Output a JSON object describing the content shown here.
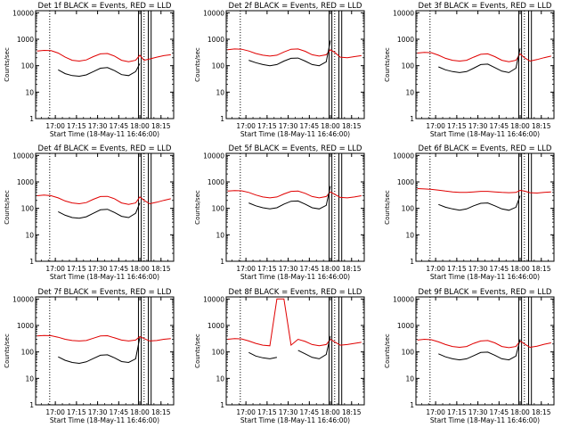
{
  "colors": {
    "events": "#000000",
    "lld": "#e00000",
    "background": "#ffffff",
    "axis": "#000000"
  },
  "shared": {
    "xlabel": "Start Time (18-May-11 16:46:00)",
    "ylabel": "Counts/sec",
    "x_ticks": [
      "17:00",
      "17:15",
      "17:30",
      "17:45",
      "18:00",
      "18:15"
    ],
    "y_ticks": [
      "1",
      "10",
      "100",
      "1000",
      "10000"
    ]
  },
  "chart_data": [
    {
      "type": "line",
      "title": "Det 1f BLACK = Events, RED = LLD",
      "x": [
        "16:47",
        "16:52",
        "16:57",
        "17:02",
        "17:07",
        "17:12",
        "17:17",
        "17:22",
        "17:27",
        "17:32",
        "17:37",
        "17:42",
        "17:47",
        "17:52",
        "17:57",
        "18:00",
        "18:03",
        "18:07",
        "18:12",
        "18:17",
        "18:22"
      ],
      "xlim": [
        "16:46",
        "18:24"
      ],
      "ylim": [
        1,
        12000
      ],
      "yscale": "log",
      "series": [
        {
          "name": "LLD",
          "values": [
            360,
            380,
            370,
            300,
            210,
            160,
            150,
            165,
            220,
            280,
            290,
            230,
            160,
            140,
            160,
            250,
            160,
            180,
            210,
            240,
            260
          ]
        },
        {
          "name": "Events",
          "values": [
            null,
            null,
            null,
            70,
            50,
            42,
            40,
            45,
            60,
            80,
            85,
            65,
            46,
            42,
            60,
            120,
            null,
            null,
            null,
            null,
            null
          ]
        }
      ],
      "vlines_dotted": [
        "16:56",
        "18:03"
      ],
      "vlines_solid": [
        "17:59",
        "18:01",
        "18:06",
        "18:08"
      ]
    },
    {
      "type": "line",
      "title": "Det 2f BLACK = Events, RED = LLD",
      "x": [
        "16:47",
        "16:52",
        "16:57",
        "17:02",
        "17:07",
        "17:12",
        "17:17",
        "17:22",
        "17:27",
        "17:32",
        "17:37",
        "17:42",
        "17:47",
        "17:52",
        "17:57",
        "18:00",
        "18:03",
        "18:07",
        "18:12",
        "18:17",
        "18:22"
      ],
      "xlim": [
        "16:46",
        "18:24"
      ],
      "ylim": [
        1,
        12000
      ],
      "yscale": "log",
      "series": [
        {
          "name": "LLD",
          "values": [
            400,
            430,
            420,
            360,
            290,
            250,
            230,
            250,
            330,
            420,
            430,
            350,
            260,
            230,
            260,
            400,
            320,
            210,
            200,
            220,
            240
          ]
        },
        {
          "name": "Events",
          "values": [
            null,
            null,
            null,
            160,
            130,
            110,
            100,
            110,
            150,
            190,
            195,
            150,
            110,
            100,
            140,
            900,
            null,
            null,
            null,
            null,
            null
          ]
        }
      ],
      "vlines_dotted": [
        "16:56",
        "18:03"
      ],
      "vlines_solid": [
        "17:59",
        "18:01",
        "18:06",
        "18:08"
      ]
    },
    {
      "type": "line",
      "title": "Det 3f BLACK = Events, RED = LLD",
      "x": [
        "16:47",
        "16:52",
        "16:57",
        "17:02",
        "17:07",
        "17:12",
        "17:17",
        "17:22",
        "17:27",
        "17:32",
        "17:37",
        "17:42",
        "17:47",
        "17:52",
        "17:57",
        "18:00",
        "18:03",
        "18:07",
        "18:12",
        "18:17",
        "18:22"
      ],
      "xlim": [
        "16:46",
        "18:24"
      ],
      "ylim": [
        1,
        12000
      ],
      "yscale": "log",
      "series": [
        {
          "name": "LLD",
          "values": [
            300,
            320,
            310,
            250,
            190,
            160,
            150,
            160,
            210,
            270,
            280,
            220,
            160,
            140,
            160,
            280,
            200,
            150,
            170,
            200,
            230
          ]
        },
        {
          "name": "Events",
          "values": [
            null,
            null,
            null,
            90,
            70,
            60,
            55,
            60,
            80,
            110,
            115,
            85,
            62,
            55,
            80,
            450,
            null,
            null,
            null,
            null,
            null
          ]
        }
      ],
      "vlines_dotted": [
        "16:56",
        "18:03"
      ],
      "vlines_solid": [
        "17:59",
        "18:01",
        "18:06",
        "18:08"
      ]
    },
    {
      "type": "line",
      "title": "Det 4f BLACK = Events, RED = LLD",
      "x": [
        "16:47",
        "16:52",
        "16:57",
        "17:02",
        "17:07",
        "17:12",
        "17:17",
        "17:22",
        "17:27",
        "17:32",
        "17:37",
        "17:42",
        "17:47",
        "17:52",
        "17:57",
        "18:00",
        "18:03",
        "18:07",
        "18:12",
        "18:17",
        "18:22"
      ],
      "xlim": [
        "16:46",
        "18:24"
      ],
      "ylim": [
        1,
        12000
      ],
      "yscale": "log",
      "series": [
        {
          "name": "LLD",
          "values": [
            300,
            320,
            300,
            250,
            190,
            160,
            150,
            165,
            220,
            280,
            285,
            230,
            160,
            140,
            160,
            270,
            200,
            150,
            170,
            200,
            230
          ]
        },
        {
          "name": "Events",
          "values": [
            null,
            null,
            null,
            75,
            55,
            45,
            42,
            48,
            65,
            88,
            92,
            70,
            50,
            45,
            65,
            160,
            null,
            null,
            null,
            null,
            null
          ]
        }
      ],
      "vlines_dotted": [
        "16:56",
        "18:03"
      ],
      "vlines_solid": [
        "17:59",
        "18:01",
        "18:06",
        "18:08"
      ]
    },
    {
      "type": "line",
      "title": "Det 5f BLACK = Events, RED = LLD",
      "x": [
        "16:47",
        "16:52",
        "16:57",
        "17:02",
        "17:07",
        "17:12",
        "17:17",
        "17:22",
        "17:27",
        "17:32",
        "17:37",
        "17:42",
        "17:47",
        "17:52",
        "17:57",
        "18:00",
        "18:03",
        "18:07",
        "18:12",
        "18:17",
        "18:22"
      ],
      "xlim": [
        "16:46",
        "18:24"
      ],
      "ylim": [
        1,
        12000
      ],
      "yscale": "log",
      "series": [
        {
          "name": "LLD",
          "values": [
            450,
            470,
            460,
            400,
            320,
            270,
            250,
            270,
            350,
            440,
            450,
            370,
            280,
            250,
            280,
            420,
            340,
            260,
            250,
            270,
            300
          ]
        },
        {
          "name": "Events",
          "values": [
            null,
            null,
            null,
            160,
            125,
            105,
            95,
            105,
            145,
            185,
            190,
            145,
            105,
            95,
            130,
            700,
            null,
            null,
            null,
            null,
            null
          ]
        }
      ],
      "vlines_dotted": [
        "16:56",
        "18:03"
      ],
      "vlines_solid": [
        "17:59",
        "18:01",
        "18:06",
        "18:08"
      ]
    },
    {
      "type": "line",
      "title": "Det 6f BLACK = Events, RED = LLD",
      "x": [
        "16:47",
        "16:52",
        "16:57",
        "17:02",
        "17:07",
        "17:12",
        "17:17",
        "17:22",
        "17:27",
        "17:32",
        "17:37",
        "17:42",
        "17:47",
        "17:52",
        "17:57",
        "18:00",
        "18:03",
        "18:07",
        "18:12",
        "18:17",
        "18:22"
      ],
      "xlim": [
        "16:46",
        "18:24"
      ],
      "ylim": [
        1,
        12000
      ],
      "yscale": "log",
      "series": [
        {
          "name": "LLD",
          "values": [
            560,
            540,
            520,
            490,
            450,
            420,
            400,
            400,
            420,
            440,
            440,
            420,
            400,
            390,
            400,
            480,
            450,
            390,
            380,
            400,
            420
          ]
        },
        {
          "name": "Events",
          "values": [
            null,
            null,
            null,
            140,
            110,
            95,
            85,
            95,
            125,
            155,
            160,
            125,
            95,
            85,
            110,
            300,
            null,
            null,
            null,
            null,
            null
          ]
        }
      ],
      "vlines_dotted": [
        "16:56",
        "18:03"
      ],
      "vlines_solid": [
        "17:59",
        "18:01",
        "18:06",
        "18:08"
      ]
    },
    {
      "type": "line",
      "title": "Det 7f BLACK = Events, RED = LLD",
      "x": [
        "16:47",
        "16:52",
        "16:57",
        "17:02",
        "17:07",
        "17:12",
        "17:17",
        "17:22",
        "17:27",
        "17:32",
        "17:37",
        "17:42",
        "17:47",
        "17:52",
        "17:57",
        "18:00",
        "18:03",
        "18:07",
        "18:12",
        "18:17",
        "18:22"
      ],
      "xlim": [
        "16:46",
        "18:24"
      ],
      "ylim": [
        1,
        12000
      ],
      "yscale": "log",
      "series": [
        {
          "name": "LLD",
          "values": [
            400,
            420,
            410,
            360,
            300,
            270,
            260,
            270,
            330,
            400,
            410,
            340,
            280,
            260,
            280,
            380,
            320,
            260,
            270,
            300,
            320
          ]
        },
        {
          "name": "Events",
          "values": [
            null,
            null,
            null,
            65,
            48,
            40,
            37,
            42,
            56,
            75,
            78,
            60,
            43,
            40,
            55,
            350,
            null,
            null,
            null,
            null,
            null
          ]
        }
      ],
      "vlines_dotted": [
        "16:56",
        "18:03"
      ],
      "vlines_solid": [
        "17:59",
        "18:01",
        "18:06",
        "18:08"
      ]
    },
    {
      "type": "line",
      "title": "Det 8f BLACK = Events, RED = LLD",
      "x": [
        "16:47",
        "16:52",
        "16:57",
        "17:02",
        "17:07",
        "17:12",
        "17:17",
        "17:22",
        "17:27",
        "17:32",
        "17:37",
        "17:42",
        "17:47",
        "17:52",
        "17:57",
        "18:00",
        "18:03",
        "18:07",
        "18:12",
        "18:17",
        "18:22"
      ],
      "xlim": [
        "16:46",
        "18:24"
      ],
      "ylim": [
        1,
        12000
      ],
      "yscale": "log",
      "series": [
        {
          "name": "LLD",
          "values": [
            300,
            320,
            310,
            260,
            210,
            180,
            170,
            10000,
            10000,
            180,
            300,
            250,
            190,
            170,
            190,
            300,
            240,
            180,
            190,
            210,
            230
          ]
        },
        {
          "name": "Events",
          "values": [
            null,
            null,
            null,
            95,
            70,
            60,
            55,
            62,
            null,
            null,
            115,
            85,
            62,
            55,
            80,
            400,
            null,
            null,
            null,
            null,
            null
          ]
        }
      ],
      "vlines_dotted": [
        "16:56",
        "18:03"
      ],
      "vlines_solid": [
        "17:59",
        "18:01",
        "18:06",
        "18:08"
      ]
    },
    {
      "type": "line",
      "title": "Det 9f BLACK = Events, RED = LLD",
      "x": [
        "16:47",
        "16:52",
        "16:57",
        "17:02",
        "17:07",
        "17:12",
        "17:17",
        "17:22",
        "17:27",
        "17:32",
        "17:37",
        "17:42",
        "17:47",
        "17:52",
        "17:57",
        "18:00",
        "18:03",
        "18:07",
        "18:12",
        "18:17",
        "18:22"
      ],
      "xlim": [
        "16:46",
        "18:24"
      ],
      "ylim": [
        1,
        12000
      ],
      "yscale": "log",
      "series": [
        {
          "name": "LLD",
          "values": [
            280,
            300,
            290,
            240,
            190,
            160,
            150,
            160,
            210,
            260,
            270,
            220,
            160,
            145,
            160,
            260,
            200,
            150,
            165,
            195,
            220
          ]
        },
        {
          "name": "Events",
          "values": [
            null,
            null,
            null,
            85,
            65,
            55,
            50,
            55,
            72,
            95,
            98,
            75,
            55,
            50,
            70,
            300,
            null,
            null,
            null,
            null,
            null
          ]
        }
      ],
      "vlines_dotted": [
        "16:56",
        "18:03"
      ],
      "vlines_solid": [
        "17:59",
        "18:01",
        "18:06",
        "18:08"
      ]
    }
  ]
}
